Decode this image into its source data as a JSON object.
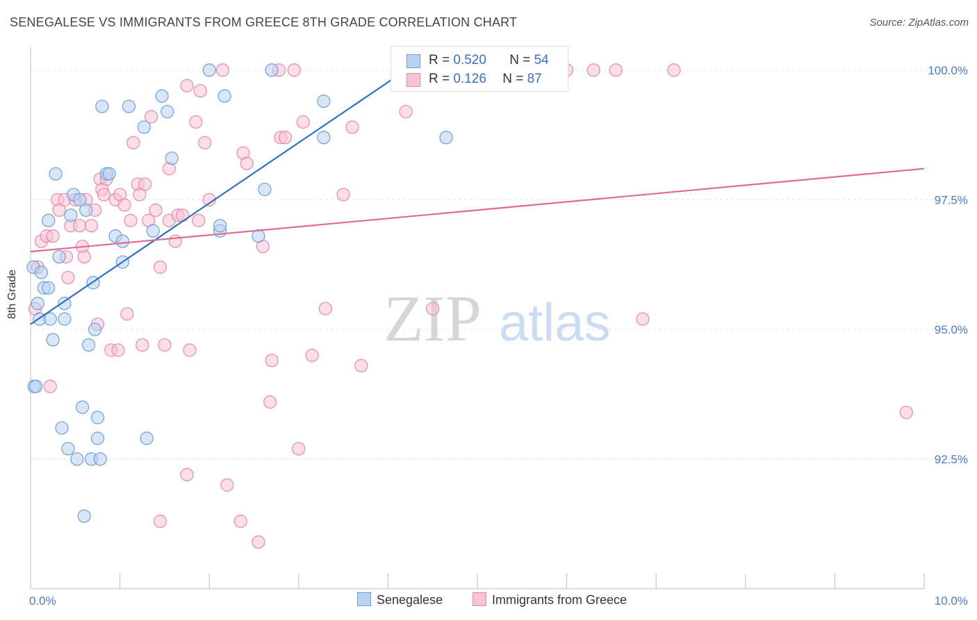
{
  "header": {
    "title": "SENEGALESE VS IMMIGRANTS FROM GREECE 8TH GRADE CORRELATION CHART",
    "source": "Source: ZipAtlas.com"
  },
  "watermark": {
    "zip": "ZIP",
    "atlas": "atlas"
  },
  "colors": {
    "blue_fill": "#b8d2f2",
    "blue_stroke": "#6b9edb",
    "blue_line": "#2f6fcc",
    "pink_fill": "#f7c3d3",
    "pink_stroke": "#e68aa8",
    "pink_line": "#e06a92",
    "tick_text": "#4a7ac7",
    "grid": "#e5e5e5"
  },
  "stats": [
    {
      "r_label": "R = ",
      "r_value": "0.520",
      "n_label": "N = ",
      "n_value": "54"
    },
    {
      "r_label": "R = ",
      "r_value": " 0.126",
      "n_label": "N = ",
      "n_value": "87"
    }
  ],
  "legend": [
    {
      "label": "Senegalese"
    },
    {
      "label": "Immigrants from Greece"
    }
  ],
  "chart_data": {
    "type": "scatter",
    "title": "SENEGALESE VS IMMIGRANTS FROM GREECE 8TH GRADE CORRELATION CHART",
    "xlabel": "",
    "ylabel": "8th Grade",
    "xlim": [
      0,
      10
    ],
    "ylim": [
      90.0,
      100.4
    ],
    "x_tick_labels": [
      {
        "value": 0,
        "label": "0.0%"
      },
      {
        "value": 10,
        "label": "10.0%"
      }
    ],
    "y_tick_labels": [
      {
        "value": 100.0,
        "label": "100.0%"
      },
      {
        "value": 97.5,
        "label": "97.5%"
      },
      {
        "value": 95.0,
        "label": "95.0%"
      },
      {
        "value": 92.5,
        "label": "92.5%"
      }
    ],
    "grid": true,
    "series": [
      {
        "name": "Senegalese",
        "r": 0.52,
        "n": 54,
        "trend": {
          "x": [
            0.0,
            4.2
          ],
          "y": [
            95.1,
            100.0
          ]
        },
        "points": [
          [
            0.03,
            96.2
          ],
          [
            0.04,
            93.9
          ],
          [
            0.06,
            93.9
          ],
          [
            0.08,
            95.5
          ],
          [
            0.1,
            95.2
          ],
          [
            0.12,
            96.1
          ],
          [
            0.15,
            95.8
          ],
          [
            0.2,
            95.8
          ],
          [
            0.2,
            97.1
          ],
          [
            0.22,
            95.2
          ],
          [
            0.25,
            94.8
          ],
          [
            0.28,
            98.0
          ],
          [
            0.32,
            96.4
          ],
          [
            0.35,
            93.1
          ],
          [
            0.38,
            95.5
          ],
          [
            0.38,
            95.2
          ],
          [
            0.42,
            92.7
          ],
          [
            0.45,
            97.2
          ],
          [
            0.48,
            97.6
          ],
          [
            0.52,
            92.5
          ],
          [
            0.55,
            97.5
          ],
          [
            0.58,
            93.5
          ],
          [
            0.6,
            91.4
          ],
          [
            0.62,
            97.3
          ],
          [
            0.65,
            94.7
          ],
          [
            0.68,
            92.5
          ],
          [
            0.7,
            95.9
          ],
          [
            0.72,
            95.0
          ],
          [
            0.75,
            93.3
          ],
          [
            0.75,
            92.9
          ],
          [
            0.78,
            92.5
          ],
          [
            0.8,
            99.3
          ],
          [
            0.85,
            98.0
          ],
          [
            0.88,
            98.0
          ],
          [
            0.95,
            96.8
          ],
          [
            1.03,
            96.7
          ],
          [
            1.03,
            96.3
          ],
          [
            1.1,
            99.3
          ],
          [
            1.27,
            98.9
          ],
          [
            1.3,
            92.9
          ],
          [
            1.37,
            96.9
          ],
          [
            1.47,
            99.5
          ],
          [
            1.53,
            99.2
          ],
          [
            1.58,
            98.3
          ],
          [
            2.0,
            100.0
          ],
          [
            2.12,
            96.9
          ],
          [
            2.12,
            97.0
          ],
          [
            2.17,
            99.5
          ],
          [
            2.55,
            96.8
          ],
          [
            2.62,
            97.7
          ],
          [
            2.7,
            100.0
          ],
          [
            3.28,
            99.4
          ],
          [
            3.28,
            98.7
          ],
          [
            4.65,
            98.7
          ]
        ]
      },
      {
        "name": "Immigrants from Greece",
        "r": 0.126,
        "n": 87,
        "trend": {
          "x": [
            0.0,
            10.0
          ],
          "y": [
            96.5,
            98.1
          ]
        },
        "points": [
          [
            0.05,
            95.4
          ],
          [
            0.08,
            96.2
          ],
          [
            0.12,
            96.7
          ],
          [
            0.18,
            96.8
          ],
          [
            0.22,
            93.9
          ],
          [
            0.25,
            96.8
          ],
          [
            0.3,
            97.5
          ],
          [
            0.32,
            97.3
          ],
          [
            0.38,
            97.5
          ],
          [
            0.4,
            96.4
          ],
          [
            0.42,
            96.0
          ],
          [
            0.45,
            97.0
          ],
          [
            0.5,
            97.5
          ],
          [
            0.55,
            97.0
          ],
          [
            0.58,
            96.6
          ],
          [
            0.6,
            96.4
          ],
          [
            0.62,
            97.5
          ],
          [
            0.68,
            97.0
          ],
          [
            0.72,
            97.3
          ],
          [
            0.75,
            95.1
          ],
          [
            0.78,
            97.9
          ],
          [
            0.8,
            97.7
          ],
          [
            0.82,
            97.6
          ],
          [
            0.85,
            97.9
          ],
          [
            0.9,
            94.6
          ],
          [
            0.95,
            97.5
          ],
          [
            0.98,
            94.6
          ],
          [
            1.0,
            97.6
          ],
          [
            1.05,
            97.4
          ],
          [
            1.08,
            95.3
          ],
          [
            1.12,
            97.1
          ],
          [
            1.15,
            98.6
          ],
          [
            1.2,
            97.8
          ],
          [
            1.22,
            97.6
          ],
          [
            1.25,
            94.7
          ],
          [
            1.28,
            97.8
          ],
          [
            1.32,
            97.1
          ],
          [
            1.35,
            99.1
          ],
          [
            1.4,
            97.3
          ],
          [
            1.45,
            91.3
          ],
          [
            1.45,
            96.2
          ],
          [
            1.5,
            94.7
          ],
          [
            1.55,
            97.1
          ],
          [
            1.55,
            98.1
          ],
          [
            1.62,
            96.7
          ],
          [
            1.65,
            97.2
          ],
          [
            1.7,
            97.2
          ],
          [
            1.75,
            92.2
          ],
          [
            1.75,
            99.7
          ],
          [
            1.78,
            94.6
          ],
          [
            1.85,
            99.0
          ],
          [
            1.88,
            97.1
          ],
          [
            1.9,
            99.6
          ],
          [
            1.95,
            98.6
          ],
          [
            2.0,
            97.5
          ],
          [
            2.15,
            100.0
          ],
          [
            2.2,
            92.0
          ],
          [
            2.35,
            91.3
          ],
          [
            2.38,
            98.4
          ],
          [
            2.42,
            98.2
          ],
          [
            2.55,
            90.9
          ],
          [
            2.6,
            96.6
          ],
          [
            2.68,
            93.6
          ],
          [
            2.7,
            94.4
          ],
          [
            2.78,
            100.0
          ],
          [
            2.8,
            98.7
          ],
          [
            2.85,
            98.7
          ],
          [
            2.95,
            100.0
          ],
          [
            3.0,
            92.7
          ],
          [
            3.05,
            99.0
          ],
          [
            3.15,
            94.5
          ],
          [
            3.3,
            95.4
          ],
          [
            3.5,
            97.6
          ],
          [
            3.6,
            98.9
          ],
          [
            3.7,
            94.3
          ],
          [
            4.2,
            99.2
          ],
          [
            4.5,
            95.4
          ],
          [
            5.0,
            100.0
          ],
          [
            5.2,
            100.0
          ],
          [
            5.6,
            100.0
          ],
          [
            5.85,
            100.0
          ],
          [
            6.0,
            100.0
          ],
          [
            6.3,
            100.0
          ],
          [
            6.55,
            100.0
          ],
          [
            6.85,
            95.2
          ],
          [
            7.2,
            100.0
          ],
          [
            9.8,
            93.4
          ]
        ]
      }
    ]
  }
}
